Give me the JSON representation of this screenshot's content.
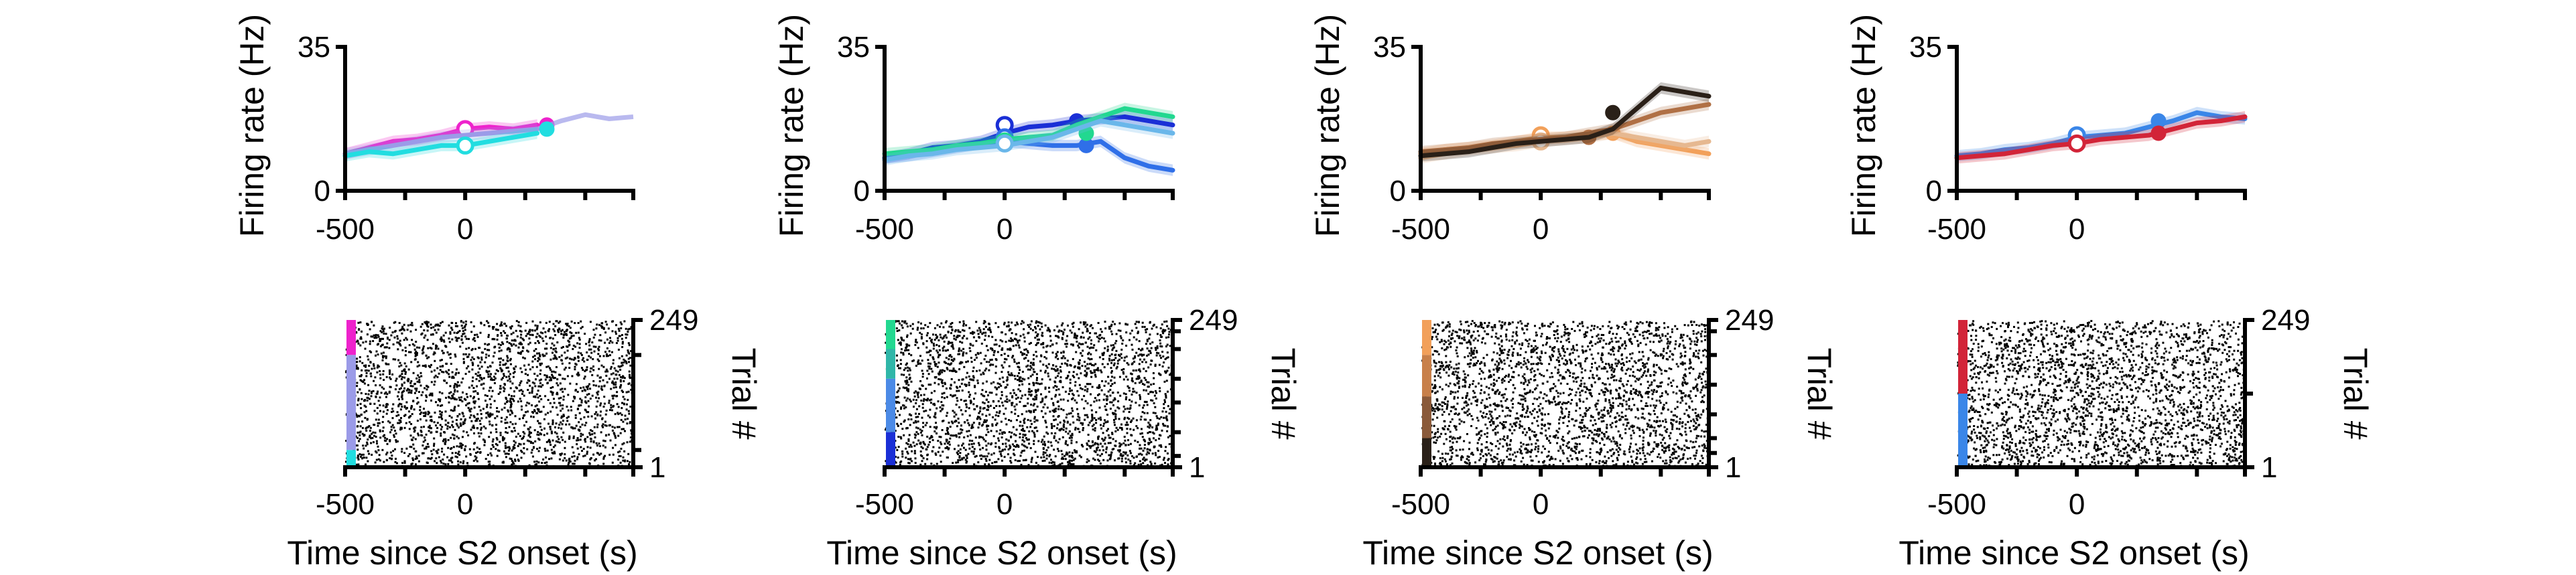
{
  "chart_data": [
    {
      "type": "line",
      "panel": "rate-1",
      "ylabel": "Firing rate (Hz)",
      "ylim": [
        0,
        35
      ],
      "yticks": [
        0,
        35
      ],
      "xticks": [
        -500,
        0
      ],
      "xlim": [
        -500,
        700
      ],
      "x": [
        -500,
        -400,
        -300,
        -200,
        -100,
        0,
        100,
        200,
        300
      ],
      "series": [
        {
          "color": "#ee22cc",
          "values": [
            9,
            10.5,
            12,
            12.5,
            13.5,
            15,
            15.5,
            15,
            16
          ],
          "markers": [
            {
              "x": 0,
              "y": 15
            },
            {
              "x": 340,
              "y": 16
            }
          ]
        },
        {
          "color": "#9b9be8",
          "values": [
            9,
            10,
            11,
            12,
            13,
            13.5,
            14,
            14.5,
            15
          ],
          "markers": [],
          "ext_x": [
            300,
            400,
            500,
            600,
            700
          ],
          "ext_values": [
            15,
            17,
            18.5,
            17.5,
            18
          ]
        },
        {
          "color": "#22dde0",
          "values": [
            8.5,
            9.5,
            9,
            10,
            11,
            11,
            12,
            13,
            14
          ],
          "markers": [
            {
              "x": 0,
              "y": 11
            },
            {
              "x": 340,
              "y": 15
            }
          ]
        }
      ]
    },
    {
      "type": "line",
      "panel": "rate-2",
      "ylabel": "Firing rate (Hz)",
      "ylim": [
        0,
        35
      ],
      "yticks": [
        0,
        35
      ],
      "xticks": [
        -500,
        0
      ],
      "xlim": [
        -500,
        700
      ],
      "x": [
        -500,
        -400,
        -300,
        -200,
        -100,
        0,
        100,
        200,
        300,
        400,
        500,
        600,
        700
      ],
      "series": [
        {
          "color": "#1a2fd6",
          "values": [
            8,
            9,
            10.5,
            11,
            12,
            14,
            15.5,
            16,
            17,
            17.5,
            18,
            17,
            16
          ],
          "markers": [
            {
              "x": 0,
              "y": 16
            },
            {
              "x": 300,
              "y": 17
            }
          ]
        },
        {
          "color": "#2f6fe8",
          "values": [
            8,
            8.5,
            9.5,
            10.5,
            11.5,
            12,
            11.5,
            11,
            11,
            12,
            8,
            6,
            5
          ],
          "markers": [
            {
              "x": 0,
              "y": 13
            },
            {
              "x": 340,
              "y": 11
            }
          ]
        },
        {
          "color": "#22d890",
          "values": [
            9,
            9.5,
            10,
            11,
            11.5,
            12.5,
            13,
            13.5,
            16,
            18,
            20,
            19,
            18
          ],
          "markers": [
            {
              "x": 0,
              "y": 12
            },
            {
              "x": 340,
              "y": 14
            }
          ]
        },
        {
          "color": "#6ab7ea",
          "values": [
            7.5,
            8.5,
            9,
            10,
            10.5,
            11,
            12,
            13,
            15,
            17,
            16,
            15,
            14
          ],
          "markers": [
            {
              "x": 0,
              "y": 11.5
            }
          ]
        }
      ]
    },
    {
      "type": "line",
      "panel": "rate-3",
      "ylabel": "Firing rate (Hz)",
      "ylim": [
        0,
        35
      ],
      "yticks": [
        0,
        35
      ],
      "xticks": [
        -500,
        0
      ],
      "xlim": [
        -500,
        700
      ],
      "x": [
        -500,
        -400,
        -300,
        -200,
        -100,
        0,
        100,
        200,
        300,
        400,
        500,
        600,
        700
      ],
      "series": [
        {
          "color": "#f2a05a",
          "values": [
            9,
            10,
            10.5,
            11,
            12,
            13,
            13,
            13.5,
            14,
            12,
            11,
            10,
            9
          ],
          "markers": [
            {
              "x": 0,
              "y": 13.5
            },
            {
              "x": 300,
              "y": 14
            }
          ]
        },
        {
          "color": "#e6b890",
          "values": [
            8,
            9,
            10,
            10.5,
            11,
            12,
            12.5,
            13,
            14,
            13,
            12,
            11,
            12
          ],
          "markers": [
            {
              "x": 0,
              "y": 12
            }
          ]
        },
        {
          "color": "#b07045",
          "values": [
            9.5,
            10,
            10.5,
            11.5,
            12,
            12.5,
            13,
            14,
            15,
            17,
            19,
            20,
            21
          ],
          "markers": [
            {
              "x": 200,
              "y": 13
            }
          ]
        },
        {
          "color": "#2a2018",
          "values": [
            8.5,
            9,
            9.5,
            10.5,
            11.5,
            12,
            12.5,
            13,
            15,
            20,
            25,
            24,
            23
          ],
          "markers": [
            {
              "x": 300,
              "y": 19
            }
          ]
        }
      ]
    },
    {
      "type": "line",
      "panel": "rate-4",
      "ylabel": "Firing rate (Hz)",
      "ylim": [
        0,
        35
      ],
      "yticks": [
        0,
        35
      ],
      "xticks": [
        -500,
        0
      ],
      "xlim": [
        -500,
        700
      ],
      "x": [
        -500,
        -400,
        -300,
        -200,
        -100,
        0,
        100,
        200,
        300,
        400,
        500,
        600,
        700
      ],
      "series": [
        {
          "color": "#3a86e8",
          "values": [
            8.5,
            9,
            10,
            10.5,
            11.5,
            13,
            13.5,
            14,
            15.5,
            17,
            19,
            18,
            17.5
          ],
          "markers": [
            {
              "x": 0,
              "y": 13.5
            },
            {
              "x": 340,
              "y": 17
            }
          ]
        },
        {
          "color": "#d22438",
          "values": [
            8,
            8.5,
            9,
            10,
            11,
            11.5,
            12.5,
            13,
            13.5,
            15,
            16.5,
            17,
            18
          ],
          "markers": [
            {
              "x": 0,
              "y": 11.5
            },
            {
              "x": 340,
              "y": 14
            }
          ]
        }
      ]
    },
    {
      "type": "scatter",
      "panel": "raster-1",
      "xlabel": "Time since S2 onset (s)",
      "ylabel": "Trial #",
      "xticks": [
        -500,
        0
      ],
      "xlim": [
        -500,
        700
      ],
      "yticks": [
        1,
        249
      ],
      "ylim": [
        1,
        249
      ],
      "condition_bar": [
        {
          "color": "#ee22cc",
          "from": 190,
          "to": 249
        },
        {
          "color": "#9b9be8",
          "from": 30,
          "to": 190
        },
        {
          "color": "#22dde0",
          "from": 1,
          "to": 30
        }
      ],
      "boundaries": [
        30,
        190
      ],
      "seed": 11
    },
    {
      "type": "scatter",
      "panel": "raster-2",
      "xlabel": "Time since S2 onset (s)",
      "ylabel": "Trial #",
      "xticks": [
        -500,
        0
      ],
      "xlim": [
        -500,
        700
      ],
      "yticks": [
        1,
        249
      ],
      "ylim": [
        1,
        249
      ],
      "condition_bar": [
        {
          "color": "#22d890",
          "from": 200,
          "to": 249
        },
        {
          "color": "#2fb6a8",
          "from": 150,
          "to": 200
        },
        {
          "color": "#4b8ae6",
          "from": 60,
          "to": 150
        },
        {
          "color": "#1a2fd6",
          "from": 1,
          "to": 60
        }
      ],
      "boundaries": [
        20,
        60,
        110,
        150,
        200,
        230
      ],
      "seed": 23
    },
    {
      "type": "scatter",
      "panel": "raster-3",
      "xlabel": "Time since S2 onset (s)",
      "ylabel": "Trial #",
      "xticks": [
        -500,
        0
      ],
      "xlim": [
        -500,
        700
      ],
      "yticks": [
        1,
        249
      ],
      "ylim": [
        1,
        249
      ],
      "condition_bar": [
        {
          "color": "#f2a05a",
          "from": 190,
          "to": 249
        },
        {
          "color": "#c8804a",
          "from": 120,
          "to": 190
        },
        {
          "color": "#8a5a3a",
          "from": 50,
          "to": 120
        },
        {
          "color": "#2a2018",
          "from": 1,
          "to": 50
        }
      ],
      "boundaries": [
        25,
        50,
        90,
        140,
        190,
        230
      ],
      "seed": 37
    },
    {
      "type": "scatter",
      "panel": "raster-4",
      "xlabel": "Time since S2 onset (s)",
      "ylabel": "Trial #",
      "xticks": [
        -500,
        0
      ],
      "xlim": [
        -500,
        700
      ],
      "yticks": [
        1,
        249
      ],
      "ylim": [
        1,
        249
      ],
      "condition_bar": [
        {
          "color": "#d22438",
          "from": 125,
          "to": 249
        },
        {
          "color": "#3a86e8",
          "from": 1,
          "to": 125
        }
      ],
      "boundaries": [
        125
      ],
      "seed": 53
    }
  ]
}
